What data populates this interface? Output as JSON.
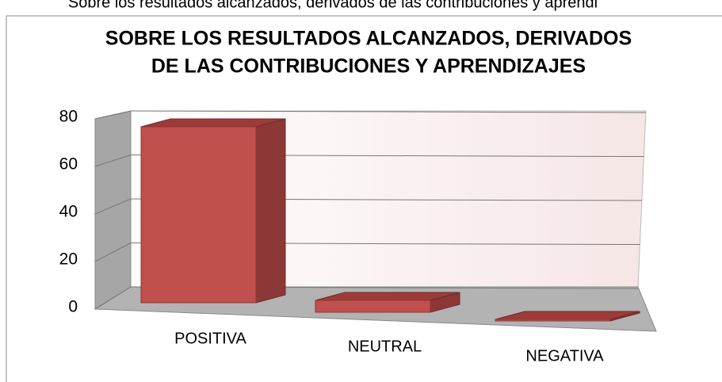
{
  "caption": "Sobre los resultados alcanzados, derivados de las contribuciones y aprendi",
  "chart_data": {
    "type": "bar3d",
    "title": [
      "SOBRE LOS RESULTADOS ALCANZADOS, DERIVADOS",
      "DE LAS CONTRIBUCIONES Y APRENDIZAJES"
    ],
    "categories": [
      "POSITIVA",
      "NEUTRAL",
      "NEGATIVA"
    ],
    "values": [
      74,
      5,
      0
    ],
    "color": "#c0504d",
    "ylim": [
      0,
      80
    ],
    "yticks": [
      0,
      20,
      40,
      60,
      80
    ],
    "grid": true
  }
}
